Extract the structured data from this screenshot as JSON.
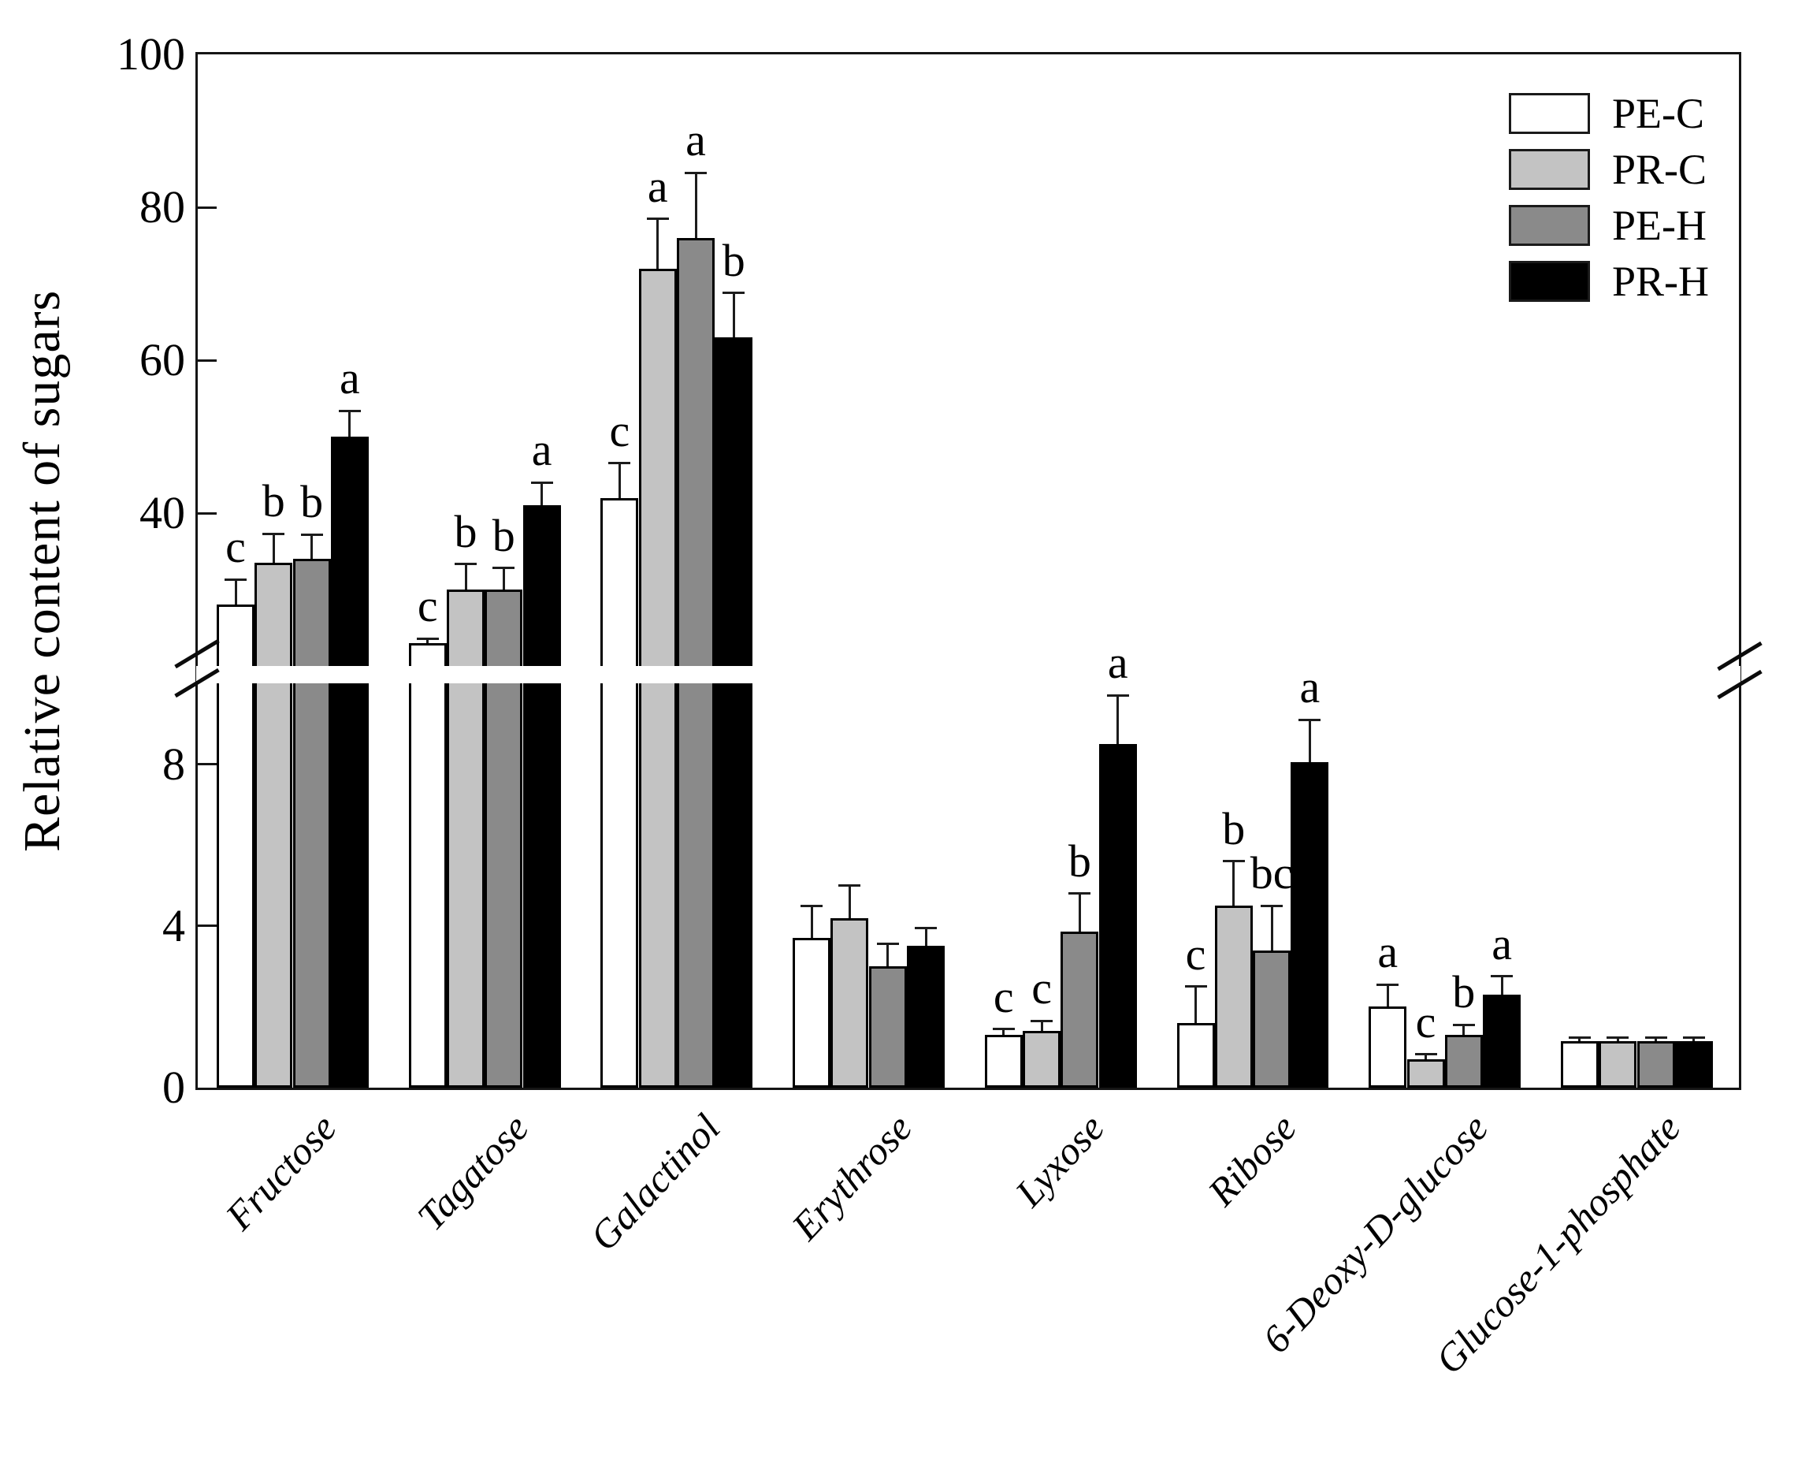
{
  "figure": {
    "background": "#ffffff",
    "frame_color": "#151515"
  },
  "y_axis": {
    "title": "Relative content of sugars",
    "upper_ticks": [
      100,
      80,
      60,
      40
    ],
    "lower_ticks": [
      8,
      4,
      0
    ],
    "break_marker": "//"
  },
  "legend": {
    "position": "top-right",
    "items": [
      {
        "label": "PE-C",
        "color": "#ffffff"
      },
      {
        "label": "PR-C",
        "color": "#c3c3c3"
      },
      {
        "label": "PE-H",
        "color": "#8a8a8a"
      },
      {
        "label": "PR-H",
        "color": "#000000"
      }
    ]
  },
  "chart_data": {
    "type": "bar",
    "title": "",
    "xlabel": "",
    "ylabel": "Relative content of sugars",
    "grid": false,
    "legend_position": "top-right",
    "bar_outline_color": "#000000",
    "error_bar_color": "#1c1c1c",
    "axis_break": {
      "lower_range": [
        0,
        10
      ],
      "upper_range": [
        20,
        100
      ],
      "hidden_interval": [
        10,
        20
      ]
    },
    "categories": [
      "Fructose",
      "Tagatose",
      "Galactinol",
      "Erythrose",
      "Lyxose",
      "Ribose",
      "6-Deoxy-D-glucose",
      "Glucose-1-phosphate"
    ],
    "series": [
      {
        "name": "PE-C",
        "color": "#ffffff",
        "values": [
          28,
          23,
          42,
          3.7,
          1.3,
          1.6,
          2.0,
          1.15
        ],
        "errors": [
          3.3,
          0.6,
          4.5,
          0.8,
          0.15,
          0.9,
          0.55,
          0.08
        ],
        "letters": [
          "c",
          "c",
          "c",
          "",
          "c",
          "c",
          "a",
          ""
        ]
      },
      {
        "name": "PR-C",
        "color": "#c3c3c3",
        "values": [
          33.5,
          30,
          72,
          4.2,
          1.4,
          4.5,
          0.7,
          1.15
        ],
        "errors": [
          3.8,
          3.3,
          6.5,
          0.8,
          0.25,
          1.1,
          0.12,
          0.08
        ],
        "letters": [
          "b",
          "b",
          "a",
          "",
          "c",
          "b",
          "c",
          ""
        ]
      },
      {
        "name": "PE-H",
        "color": "#8a8a8a",
        "values": [
          34,
          30,
          76,
          3.0,
          3.85,
          3.4,
          1.3,
          1.15
        ],
        "errors": [
          3.2,
          2.8,
          8.5,
          0.55,
          0.95,
          1.1,
          0.25,
          0.08
        ],
        "letters": [
          "b",
          "b",
          "a",
          "",
          "b",
          "bc",
          "b",
          ""
        ]
      },
      {
        "name": "PR-H",
        "color": "#000000",
        "values": [
          50,
          41,
          63,
          3.5,
          8.5,
          8.05,
          2.3,
          1.15
        ],
        "errors": [
          3.4,
          3.0,
          5.8,
          0.45,
          1.2,
          1.05,
          0.45,
          0.08
        ],
        "letters": [
          "a",
          "a",
          "b",
          "",
          "a",
          "a",
          "a",
          ""
        ]
      }
    ]
  }
}
